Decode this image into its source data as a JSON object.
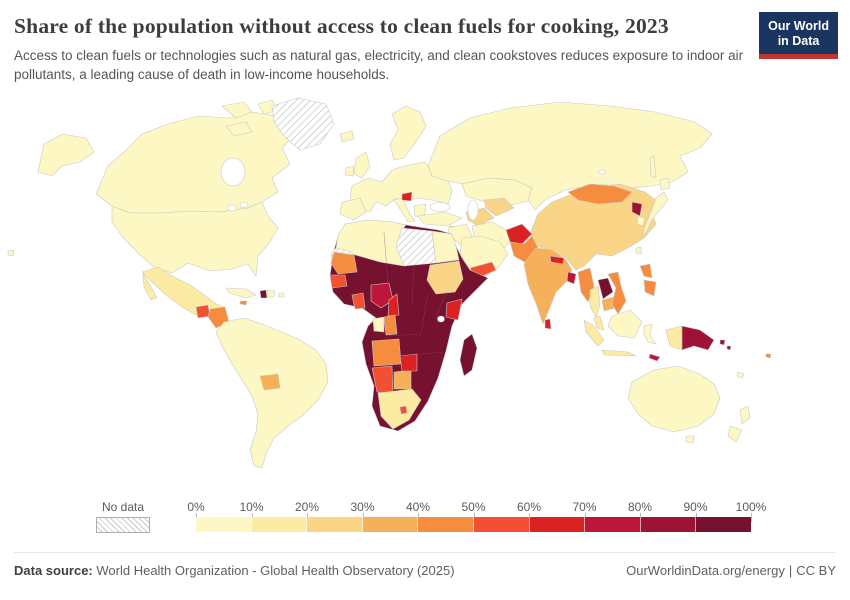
{
  "header": {
    "title": "Share of the population without access to clean fuels for cooking, 2023",
    "subtitle": "Access to clean fuels or technologies such as natural gas, electricity, and clean cookstoves reduces exposure to indoor air pollutants, a leading cause of death in low-income households.",
    "logo": {
      "line1": "Our World",
      "line2": "in Data",
      "bg": "#1a3560",
      "accent": "#c0362c"
    }
  },
  "chart_data": {
    "type": "heatmap",
    "subtype": "choropleth-world-map",
    "title": "Share of the population without access to clean fuels for cooking, 2023",
    "unit": "%",
    "legend": {
      "no_data_label": "No data",
      "tick_labels": [
        "0%",
        "10%",
        "20%",
        "30%",
        "40%",
        "50%",
        "60%",
        "70%",
        "80%",
        "90%",
        "100%"
      ],
      "bin_ranges": [
        "0-10%",
        "10-20%",
        "20-30%",
        "30-40%",
        "40-50%",
        "50-60%",
        "60-70%",
        "70-80%",
        "80-90%",
        "90-100%"
      ],
      "no_data_style": "diagonal-hatch"
    },
    "palette": [
      "#FDF7C3",
      "#FCEBA2",
      "#FAD588",
      "#F7B05A",
      "#F68C3E",
      "#F25030",
      "#DB2122",
      "#BE1638",
      "#9C1336",
      "#76112F"
    ],
    "border_color": "#c9c9c9",
    "regions": {
      "usa": 0,
      "canada": 0,
      "greenland": "nodata",
      "mexico": 1,
      "guatemala": 5,
      "honduras_nicaragua": 4,
      "costa_rica_panama": 1,
      "cuba": 0,
      "jamaica": 4,
      "haiti": 9,
      "dominican_republic": 0,
      "puerto_rico": 0,
      "south_america": 0,
      "paraguay": 3,
      "europe": 0,
      "bosnia": 6,
      "russia": 0,
      "kazakhstan": 0,
      "turkmenistan": 2,
      "uzbekistan": 2,
      "turkey": 0,
      "iran": 0,
      "iraq_levant": 0,
      "syria": 2,
      "arabia": 0,
      "yemen": 5,
      "china": 2,
      "mongolia": 4,
      "afghanistan": 6,
      "pakistan": 4,
      "india": 3,
      "nepal": 6,
      "bangladesh": 7,
      "sri_lanka": 6,
      "myanmar": 4,
      "thailand": 1,
      "laos": 9,
      "cambodia": 3,
      "vietnam": 4,
      "north_korea": 8,
      "south_korea": 0,
      "japan": 0,
      "taiwan": 0,
      "philippines": 4,
      "malaysia": 1,
      "borneo": 0,
      "indonesia_west": 1,
      "sulawesi": 0,
      "west_new_guinea": 1,
      "timor_leste": 7,
      "papua_new_guinea": 8,
      "solomon_islands": 8,
      "fiji": 4,
      "new_caledonia": 0,
      "australia": 0,
      "new_zealand": 0,
      "africa_sub_saharan": 9,
      "north_africa": 0,
      "western_sahara": "nodata",
      "libya": "nodata",
      "egypt": 0,
      "sudan": 2,
      "mauritania": 4,
      "senegal": 5,
      "ghana": 5,
      "nigeria": 7,
      "cameroon": 6,
      "gabon": 0,
      "congo": 4,
      "angola": 4,
      "namibia": 5,
      "botswana": 3,
      "south_africa": 1,
      "lesotho": 5,
      "zimbabwe": 6,
      "kenya": 6,
      "madagascar": 9
    }
  },
  "footer": {
    "source_label": "Data source:",
    "source": "World Health Organization - Global Health Observatory (2025)",
    "link": "OurWorldinData.org/energy",
    "separator": "|",
    "license": "CC BY"
  }
}
